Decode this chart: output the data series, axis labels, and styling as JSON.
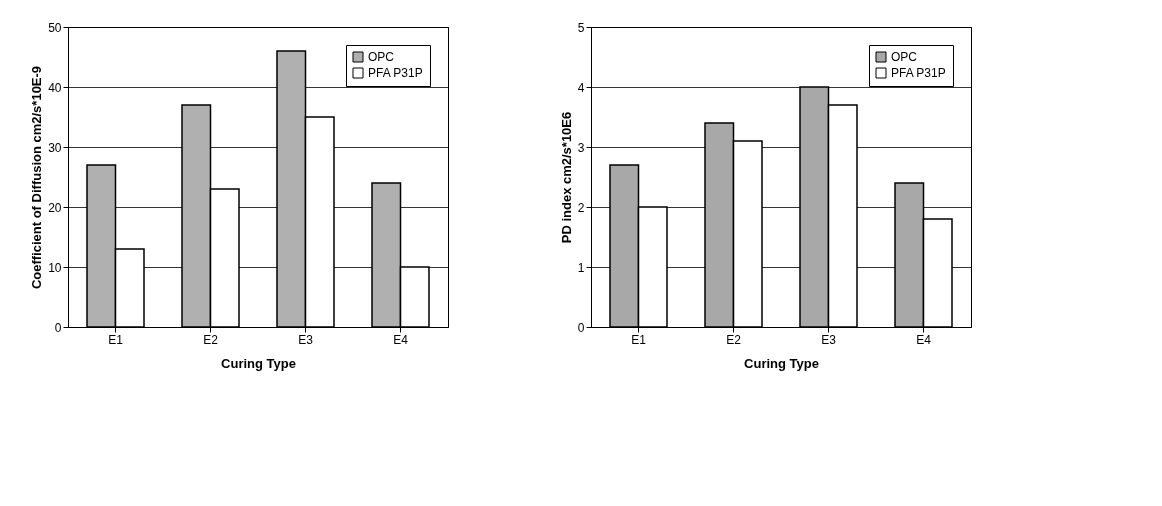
{
  "chart_data": [
    {
      "type": "bar",
      "categories": [
        "E1",
        "E2",
        "E3",
        "E4"
      ],
      "xlabel": "Curing Type",
      "ylabel": "Coefficient of Diffusion cm2/s*10E-9",
      "ylim": [
        0,
        50
      ],
      "yticks": [
        0,
        10,
        20,
        30,
        40,
        50
      ],
      "grid": "y",
      "legend": "top right",
      "series": [
        {
          "name": "OPC",
          "color": "#b0b0b0",
          "values": [
            27,
            37,
            46,
            24
          ]
        },
        {
          "name": "PFA P31P",
          "color": "#ffffff",
          "values": [
            13,
            23,
            35,
            10
          ]
        }
      ]
    },
    {
      "type": "bar",
      "categories": [
        "E1",
        "E2",
        "E3",
        "E4"
      ],
      "xlabel": "Curing Type",
      "ylabel": "PD index cm2/s*10E6",
      "ylim": [
        0,
        5
      ],
      "yticks": [
        0,
        1,
        2,
        3,
        4,
        5
      ],
      "grid": "y",
      "legend": "top right",
      "series": [
        {
          "name": "OPC",
          "color": "#a8a8a8",
          "values": [
            2.7,
            3.4,
            4.0,
            2.4
          ]
        },
        {
          "name": "PFA P31P",
          "color": "#ffffff",
          "values": [
            2.0,
            3.1,
            3.7,
            1.8
          ]
        }
      ]
    }
  ]
}
